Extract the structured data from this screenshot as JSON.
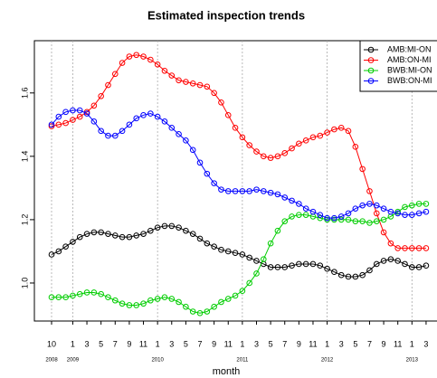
{
  "chart_data": {
    "type": "line",
    "title": "Estimated inspection trends",
    "xlabel": "month",
    "categories": [
      "10",
      null,
      null,
      "1",
      null,
      "3",
      null,
      "5",
      null,
      "7",
      null,
      "9",
      null,
      "11",
      null,
      "1",
      null,
      "3",
      null,
      "5",
      null,
      "7",
      null,
      "9",
      null,
      "11",
      null,
      "1",
      null,
      "3",
      null,
      "5",
      null,
      "7",
      null,
      "9",
      null,
      "11",
      null,
      "1",
      null,
      "3",
      null,
      "5",
      null,
      "7",
      null,
      "9",
      null,
      "11",
      null,
      "1",
      null,
      "3"
    ],
    "years": [
      {
        "label": "2008",
        "at": 0
      },
      {
        "label": "2009",
        "at": 3
      },
      {
        "label": "2010",
        "at": 15
      },
      {
        "label": "2011",
        "at": 27
      },
      {
        "label": "2012",
        "at": 39
      },
      {
        "label": "2013",
        "at": 51
      }
    ],
    "ylim": [
      0.88,
      1.765
    ],
    "yticks": [
      {
        "value": 1.0,
        "label": "1.0"
      },
      {
        "value": 1.2,
        "label": "1.2"
      },
      {
        "value": 1.4,
        "label": "1.4"
      },
      {
        "value": 1.6,
        "label": "1.6"
      }
    ],
    "legend": "top-right",
    "series": [
      {
        "name": "AMB:MI-ON",
        "color": "#000000",
        "values": [
          1.09,
          1.1,
          1.115,
          1.13,
          1.145,
          1.155,
          1.16,
          1.16,
          1.155,
          1.15,
          1.145,
          1.145,
          1.15,
          1.155,
          1.165,
          1.175,
          1.18,
          1.18,
          1.175,
          1.165,
          1.155,
          1.14,
          1.125,
          1.115,
          1.105,
          1.1,
          1.095,
          1.09,
          1.08,
          1.07,
          1.06,
          1.05,
          1.05,
          1.05,
          1.055,
          1.06,
          1.06,
          1.06,
          1.055,
          1.045,
          1.035,
          1.025,
          1.02,
          1.02,
          1.025,
          1.04,
          1.06,
          1.07,
          1.075,
          1.07,
          1.06,
          1.05,
          1.05,
          1.055
        ]
      },
      {
        "name": "AMB:ON-MI",
        "color": "#ff0000",
        "values": [
          1.495,
          1.5,
          1.505,
          1.515,
          1.525,
          1.54,
          1.56,
          1.59,
          1.625,
          1.66,
          1.695,
          1.715,
          1.72,
          1.715,
          1.705,
          1.69,
          1.67,
          1.655,
          1.64,
          1.635,
          1.63,
          1.625,
          1.62,
          1.6,
          1.57,
          1.53,
          1.49,
          1.46,
          1.435,
          1.415,
          1.4,
          1.395,
          1.4,
          1.41,
          1.425,
          1.44,
          1.45,
          1.46,
          1.465,
          1.475,
          1.485,
          1.49,
          1.48,
          1.43,
          1.36,
          1.29,
          1.22,
          1.16,
          1.125,
          1.11,
          1.11,
          1.11,
          1.11,
          1.11
        ]
      },
      {
        "name": "BWB:MI-ON",
        "color": "#00cd00",
        "values": [
          0.955,
          0.955,
          0.955,
          0.96,
          0.965,
          0.97,
          0.97,
          0.965,
          0.955,
          0.945,
          0.935,
          0.93,
          0.93,
          0.935,
          0.945,
          0.95,
          0.955,
          0.95,
          0.94,
          0.925,
          0.91,
          0.905,
          0.91,
          0.925,
          0.94,
          0.95,
          0.96,
          0.975,
          1.0,
          1.03,
          1.075,
          1.125,
          1.165,
          1.195,
          1.21,
          1.215,
          1.215,
          1.21,
          1.205,
          1.2,
          1.2,
          1.2,
          1.2,
          1.195,
          1.195,
          1.19,
          1.195,
          1.2,
          1.21,
          1.225,
          1.24,
          1.245,
          1.25,
          1.25
        ]
      },
      {
        "name": "BWB:ON-MI",
        "color": "#0000ff",
        "values": [
          1.5,
          1.525,
          1.54,
          1.545,
          1.545,
          1.535,
          1.51,
          1.48,
          1.465,
          1.465,
          1.48,
          1.5,
          1.52,
          1.53,
          1.535,
          1.525,
          1.51,
          1.49,
          1.47,
          1.45,
          1.42,
          1.38,
          1.345,
          1.315,
          1.295,
          1.29,
          1.29,
          1.29,
          1.29,
          1.295,
          1.29,
          1.285,
          1.28,
          1.27,
          1.26,
          1.25,
          1.235,
          1.225,
          1.215,
          1.205,
          1.205,
          1.21,
          1.22,
          1.235,
          1.245,
          1.25,
          1.245,
          1.235,
          1.225,
          1.22,
          1.215,
          1.215,
          1.22,
          1.225
        ]
      }
    ]
  }
}
